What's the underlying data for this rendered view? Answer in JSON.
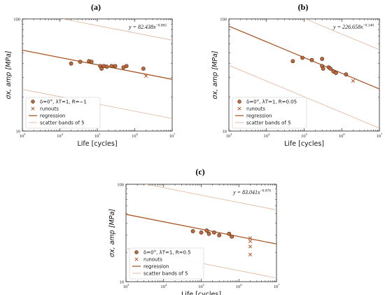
{
  "colors": {
    "marker_fill": "#c06a3c",
    "marker_stroke": "#4a2410",
    "runout": "#b04a1c",
    "regression": "#a85a2a",
    "scatter": "#e0b49a"
  },
  "chart_data": [
    {
      "type": "scatter",
      "panel_label": "(a)",
      "equation": "y = 82.438x^{−0.065}",
      "eq_base": "y = 82.438x",
      "eq_exp": "−0.065",
      "xlabel": "Life [cycles]",
      "ylabel": "σx, amp [MPa]",
      "xscale": "log",
      "yscale": "log",
      "xlim": [
        1000,
        10000000
      ],
      "ylim": [
        10,
        100
      ],
      "x_ticks": [
        {
          "value": 1000,
          "base": "10",
          "exp": "3"
        },
        {
          "value": 10000,
          "base": "10",
          "exp": "4"
        },
        {
          "value": 100000,
          "base": "10",
          "exp": "5"
        },
        {
          "value": 1000000,
          "base": "10",
          "exp": "6"
        },
        {
          "value": 10000000,
          "base": "10",
          "exp": "7"
        }
      ],
      "y_ticks": [
        {
          "value": 10,
          "label": "10"
        },
        {
          "value": 100,
          "label": "100"
        }
      ],
      "legend_location": "lower-left",
      "legend": {
        "series_label": "δ=0°, λT=1, R=−1",
        "runouts": "runouts",
        "regression": "regression",
        "scatter": "scatter bands of 5"
      },
      "series": [
        {
          "name": "δ=0°, λT=1, R=−1",
          "x": [
            20000,
            35000,
            60000,
            70000,
            120000,
            130000,
            150000,
            180000,
            240000,
            300000,
            500000,
            600000,
            1700000
          ],
          "y": [
            40,
            41.5,
            42,
            41.5,
            38,
            36,
            38,
            37.5,
            38,
            38,
            37,
            38,
            36
          ]
        },
        {
          "name": "runouts",
          "x": [
            2000000
          ],
          "y": [
            31
          ]
        }
      ],
      "regression": {
        "a": 82.438,
        "b": -0.065
      },
      "scatter_band_factor": 5
    },
    {
      "type": "scatter",
      "panel_label": "(b)",
      "equation": "y = 226.658x^{−0.140}",
      "eq_base": "y = 226.658x",
      "eq_exp": "−0.140",
      "xlabel": "Life [cycles]",
      "ylabel": "σx, amp [MPa]",
      "xscale": "log",
      "yscale": "log",
      "xlim": [
        1000,
        10000000
      ],
      "ylim": [
        10,
        100
      ],
      "x_ticks": [
        {
          "value": 1000,
          "base": "10",
          "exp": "3"
        },
        {
          "value": 10000,
          "base": "10",
          "exp": "4"
        },
        {
          "value": 100000,
          "base": "10",
          "exp": "5"
        },
        {
          "value": 1000000,
          "base": "10",
          "exp": "6"
        },
        {
          "value": 10000000,
          "base": "10",
          "exp": "7"
        }
      ],
      "y_ticks": [
        {
          "value": 10,
          "label": "10"
        },
        {
          "value": 100,
          "label": "100"
        }
      ],
      "legend_location": "lower-left",
      "legend": {
        "series_label": "δ=0°, λT=1, R=0.05",
        "runouts": "runouts",
        "regression": "regression",
        "scatter": "scatter bands of 5"
      },
      "series": [
        {
          "name": "δ=0°, λT=1, R=0.05",
          "x": [
            50000,
            90000,
            160000,
            300000,
            300000,
            320000,
            450000,
            500000,
            600000,
            700000,
            1300000
          ],
          "y": [
            42,
            45,
            43,
            44,
            38,
            36,
            37,
            36,
            34,
            33,
            32
          ]
        },
        {
          "name": "runouts",
          "x": [
            2000000
          ],
          "y": [
            28
          ]
        }
      ],
      "regression": {
        "a": 226.658,
        "b": -0.14
      },
      "scatter_band_factor": 5
    },
    {
      "type": "scatter",
      "panel_label": "(c)",
      "equation": "y = 83.041x^{−0.076}",
      "eq_base": "y = 83.041x",
      "eq_exp": "−0.076",
      "xlabel": "Life [cycles]",
      "ylabel": "σx, amp [MPa]",
      "xscale": "log",
      "yscale": "log",
      "xlim": [
        1000,
        10000000
      ],
      "ylim": [
        10,
        100
      ],
      "x_ticks": [
        {
          "value": 1000,
          "base": "10",
          "exp": "3"
        },
        {
          "value": 10000,
          "base": "10",
          "exp": "4"
        },
        {
          "value": 100000,
          "base": "10",
          "exp": "5"
        },
        {
          "value": 1000000,
          "base": "10",
          "exp": "6"
        },
        {
          "value": 10000000,
          "base": "10",
          "exp": "7"
        }
      ],
      "y_ticks": [
        {
          "value": 10,
          "label": "10"
        },
        {
          "value": 100,
          "label": "100"
        }
      ],
      "legend_location": "lower-left",
      "legend": {
        "series_label": "δ=0°, λT=1, R=0.5",
        "runouts": "runouts",
        "regression": "regression",
        "scatter": "scatter bands of 5"
      },
      "series": [
        {
          "name": "δ=0°, λT=1, R=0.5",
          "x": [
            60000,
            100000,
            140000,
            160000,
            220000,
            300000,
            550000,
            650000
          ],
          "y": [
            33,
            32,
            33.5,
            31,
            32,
            30,
            31,
            29
          ]
        },
        {
          "name": "runouts",
          "x": [
            2000000,
            2000000,
            2000000,
            2000000
          ],
          "y": [
            28,
            26,
            23,
            19
          ]
        }
      ],
      "regression": {
        "a": 83.041,
        "b": -0.076
      },
      "scatter_band_factor": 5
    }
  ]
}
